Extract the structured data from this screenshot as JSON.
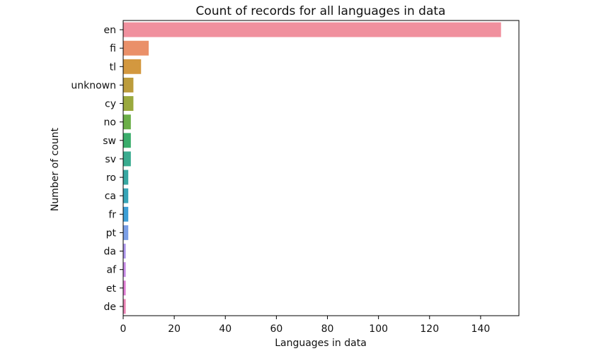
{
  "chart_data": {
    "type": "bar",
    "orientation": "horizontal",
    "title": "Count of records for all languages in data",
    "xlabel": "Languages in data",
    "ylabel": "Number of count",
    "xlim": [
      0,
      155
    ],
    "x_ticks": [
      0,
      20,
      40,
      60,
      80,
      100,
      120,
      140
    ],
    "grid": false,
    "categories": [
      "en",
      "fi",
      "tl",
      "unknown",
      "cy",
      "no",
      "sw",
      "sv",
      "ro",
      "ca",
      "fr",
      "pt",
      "da",
      "af",
      "et",
      "de"
    ],
    "values": [
      148,
      10,
      7,
      4,
      4,
      3,
      3,
      3,
      2,
      2,
      2,
      2,
      1,
      1,
      1,
      1
    ],
    "colors": [
      "#f0909e",
      "#ea9069",
      "#d3983f",
      "#bc9c3c",
      "#9aa93e",
      "#6bae48",
      "#3aad6b",
      "#39ab8f",
      "#37a8a2",
      "#38a5b7",
      "#3d9fd6",
      "#7b9fe7",
      "#ae97ec",
      "#c98ce7",
      "#e17fd5",
      "#ec85b6"
    ]
  }
}
